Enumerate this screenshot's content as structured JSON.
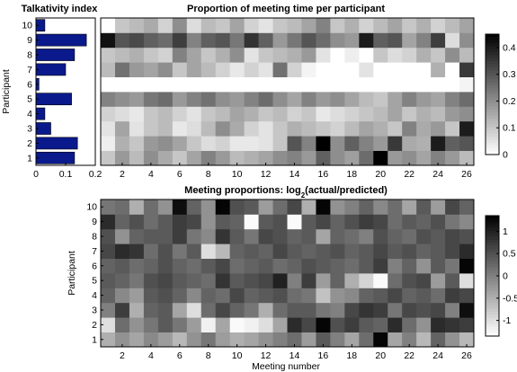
{
  "chart_data": [
    {
      "type": "bar",
      "orientation": "horizontal",
      "title": "Talkativity index",
      "ylabel": "Participant",
      "xlabel": "",
      "categories": [
        "1",
        "2",
        "3",
        "4",
        "5",
        "6",
        "7",
        "8",
        "9",
        "10"
      ],
      "values": [
        0.13,
        0.14,
        0.05,
        0.03,
        0.12,
        0.01,
        0.1,
        0.13,
        0.17,
        0.03
      ],
      "xlim": [
        0,
        0.2
      ],
      "xticks": [
        "0",
        "0.1",
        "0.2"
      ],
      "bar_color": "#0a1a8c"
    },
    {
      "type": "heatmap",
      "title": "Proportion of meeting time per participant",
      "xlabel": "",
      "ylabel": "",
      "x": [
        1,
        2,
        3,
        4,
        5,
        6,
        7,
        8,
        9,
        10,
        11,
        12,
        13,
        14,
        15,
        16,
        17,
        18,
        19,
        20,
        21,
        22,
        23,
        24,
        25,
        26
      ],
      "y": [
        "1",
        "2",
        "3",
        "4",
        "5",
        "6",
        "7",
        "8",
        "9",
        "10"
      ],
      "xticks": [
        "2",
        "4",
        "6",
        "8",
        "10",
        "12",
        "14",
        "16",
        "18",
        "20",
        "22",
        "24",
        "26"
      ],
      "colorbar_ticks": [
        "0",
        "0.1",
        "0.2",
        "0.3",
        "0.4"
      ],
      "clim": [
        0,
        0.45
      ],
      "colormap": "gray-reversed",
      "values": [
        [
          0.1,
          0.18,
          0.12,
          0.2,
          0.15,
          0.1,
          0.16,
          0.22,
          0.18,
          0.12,
          0.14,
          0.16,
          0.2,
          0.22,
          0.18,
          0.28,
          0.2,
          0.17,
          0.26,
          0.45,
          0.18,
          0.2,
          0.16,
          0.22,
          0.18,
          0.12
        ],
        [
          0.03,
          0.14,
          0.1,
          0.18,
          0.2,
          0.16,
          0.1,
          0.06,
          0.08,
          0.04,
          0.04,
          0.05,
          0.1,
          0.3,
          0.22,
          0.45,
          0.2,
          0.28,
          0.22,
          0.18,
          0.35,
          0.15,
          0.14,
          0.4,
          0.28,
          0.3
        ],
        [
          0.05,
          0.16,
          0.05,
          0.1,
          0.12,
          0.04,
          0.06,
          0.12,
          0.2,
          0.15,
          0.08,
          0.05,
          0.1,
          0.14,
          0.12,
          0.1,
          0.08,
          0.12,
          0.16,
          0.14,
          0.1,
          0.22,
          0.15,
          0.18,
          0.1,
          0.4
        ],
        [
          0.08,
          0.06,
          0.04,
          0.1,
          0.12,
          0.08,
          0.05,
          0.1,
          0.12,
          0.16,
          0.14,
          0.1,
          0.12,
          0.08,
          0.1,
          0.04,
          0.06,
          0.08,
          0.1,
          0.12,
          0.16,
          0.1,
          0.14,
          0.12,
          0.18,
          0.2
        ],
        [
          0.22,
          0.2,
          0.18,
          0.24,
          0.26,
          0.18,
          0.22,
          0.25,
          0.2,
          0.18,
          0.22,
          0.26,
          0.2,
          0.16,
          0.22,
          0.18,
          0.2,
          0.16,
          0.12,
          0.1,
          0.16,
          0.22,
          0.18,
          0.16,
          0.22,
          0.26
        ],
        [
          0.0,
          0.0,
          0.0,
          0.0,
          0.0,
          0.0,
          0.0,
          0.0,
          0.0,
          0.0,
          0.0,
          0.0,
          0.0,
          0.0,
          0.0,
          0.0,
          0.0,
          0.0,
          0.0,
          0.0,
          0.0,
          0.0,
          0.0,
          0.0,
          0.0,
          0.02
        ],
        [
          0.12,
          0.25,
          0.18,
          0.16,
          0.2,
          0.1,
          0.16,
          0.12,
          0.08,
          0.04,
          0.08,
          0.05,
          0.25,
          0.08,
          0.02,
          0.0,
          0.0,
          0.0,
          0.05,
          0.0,
          0.0,
          0.0,
          0.0,
          0.14,
          0.0,
          0.35
        ],
        [
          0.1,
          0.12,
          0.14,
          0.1,
          0.08,
          0.22,
          0.16,
          0.1,
          0.14,
          0.2,
          0.05,
          0.1,
          0.12,
          0.14,
          0.18,
          0.05,
          0.0,
          0.03,
          0.0,
          0.1,
          0.06,
          0.08,
          0.14,
          0.1,
          0.2,
          0.12
        ],
        [
          0.42,
          0.3,
          0.32,
          0.28,
          0.26,
          0.34,
          0.22,
          0.28,
          0.3,
          0.24,
          0.36,
          0.28,
          0.18,
          0.24,
          0.3,
          0.26,
          0.2,
          0.18,
          0.4,
          0.28,
          0.3,
          0.16,
          0.22,
          0.34,
          0.06,
          0.2
        ],
        [
          0.0,
          0.1,
          0.12,
          0.15,
          0.08,
          0.2,
          0.06,
          0.12,
          0.1,
          0.16,
          0.08,
          0.05,
          0.1,
          0.12,
          0.16,
          0.22,
          0.1,
          0.14,
          0.08,
          0.12,
          0.16,
          0.1,
          0.14,
          0.08,
          0.12,
          0.16
        ]
      ]
    },
    {
      "type": "heatmap",
      "title": "Meeting proportions: log2(actual/predicted)",
      "title_parts": {
        "prefix": "Meeting proportions: log",
        "subscript": "2",
        "suffix": "(actual/predicted)"
      },
      "xlabel": "Meeting number",
      "ylabel": "Participant",
      "x": [
        1,
        2,
        3,
        4,
        5,
        6,
        7,
        8,
        9,
        10,
        11,
        12,
        13,
        14,
        15,
        16,
        17,
        18,
        19,
        20,
        21,
        22,
        23,
        24,
        25,
        26
      ],
      "y": [
        "1",
        "2",
        "3",
        "4",
        "5",
        "6",
        "7",
        "8",
        "9",
        "10"
      ],
      "xticks": [
        "2",
        "4",
        "6",
        "8",
        "10",
        "12",
        "14",
        "16",
        "18",
        "20",
        "22",
        "24",
        "26"
      ],
      "colorbar_ticks": [
        "1",
        "0.5",
        "0",
        "-0.5",
        "-1"
      ],
      "clim": [
        -1.35,
        1.35
      ],
      "colormap": "gray-reversed",
      "values": [
        [
          -0.5,
          -0.2,
          -0.4,
          -0.1,
          -0.3,
          -0.6,
          -0.2,
          0.1,
          -0.3,
          -0.5,
          -0.4,
          -0.2,
          0.0,
          0.2,
          -0.3,
          0.4,
          0.0,
          -0.4,
          0.2,
          1.3,
          -0.4,
          0.0,
          -0.6,
          0.3,
          -0.2,
          -0.6
        ],
        [
          -1.0,
          0.2,
          -0.2,
          0.1,
          0.4,
          0.1,
          -0.3,
          -1.2,
          -0.4,
          -1.3,
          -1.2,
          -1.0,
          -0.4,
          0.9,
          0.6,
          1.3,
          0.5,
          0.7,
          0.4,
          0.3,
          0.9,
          0.2,
          -0.2,
          0.9,
          0.8,
          0.7
        ],
        [
          0.0,
          0.7,
          -0.5,
          0.3,
          0.4,
          -0.4,
          -1.0,
          0.2,
          0.6,
          0.3,
          0.1,
          -0.5,
          0.2,
          0.4,
          0.4,
          0.1,
          0.0,
          0.6,
          0.8,
          0.7,
          0.1,
          0.6,
          0.5,
          0.6,
          0.0,
          1.2
        ],
        [
          0.3,
          -0.1,
          -0.3,
          0.4,
          0.5,
          0.3,
          -0.1,
          0.3,
          0.2,
          0.6,
          0.3,
          0.4,
          0.5,
          0.2,
          0.1,
          -0.7,
          -0.2,
          -0.1,
          0.3,
          0.4,
          0.6,
          0.3,
          0.4,
          0.2,
          0.7,
          0.6
        ],
        [
          0.4,
          0.3,
          0.1,
          0.5,
          0.6,
          0.4,
          0.3,
          0.2,
          0.8,
          0.4,
          0.5,
          0.6,
          1.0,
          0.0,
          0.7,
          -0.3,
          0.3,
          -0.5,
          -0.9,
          -1.3,
          0.2,
          0.5,
          0.6,
          -0.3,
          0.4,
          -1.0
        ],
        [
          0.3,
          0.4,
          0.2,
          0.3,
          0.5,
          0.3,
          0.2,
          0.4,
          0.6,
          0.2,
          0.3,
          0.4,
          0.2,
          0.3,
          0.5,
          0.4,
          0.3,
          0.2,
          0.4,
          0.7,
          0.0,
          0.3,
          -0.2,
          0.4,
          0.1,
          1.3
        ],
        [
          0.6,
          0.9,
          0.8,
          0.2,
          0.5,
          0.1,
          0.4,
          -1.0,
          -0.6,
          0.3,
          0.4,
          0.3,
          0.6,
          0.4,
          0.3,
          0.4,
          0.5,
          0.3,
          0.4,
          0.6,
          0.4,
          0.5,
          0.3,
          0.4,
          0.6,
          0.9
        ],
        [
          0.5,
          -0.2,
          0.3,
          0.4,
          0.4,
          0.7,
          0.1,
          -0.1,
          0.8,
          0.4,
          0.1,
          0.6,
          0.5,
          0.3,
          0.4,
          -0.4,
          0.3,
          0.2,
          0.0,
          0.5,
          0.3,
          0.2,
          0.5,
          0.4,
          0.6,
          0.5
        ],
        [
          0.9,
          0.3,
          0.5,
          0.2,
          0.4,
          0.7,
          0.6,
          -0.2,
          0.4,
          0.3,
          -1.3,
          0.4,
          0.5,
          -1.3,
          0.4,
          0.6,
          0.3,
          0.5,
          0.7,
          0.6,
          0.2,
          0.4,
          0.3,
          0.5,
          0.1,
          -0.1
        ],
        [
          0.1,
          0.2,
          -0.5,
          0.2,
          -0.2,
          1.2,
          0.3,
          -0.2,
          1.3,
          0.5,
          0.4,
          -0.3,
          0.2,
          0.6,
          -0.5,
          1.3,
          -0.2,
          0.0,
          0.3,
          -0.1,
          0.2,
          -0.4,
          0.4,
          -0.3,
          0.6,
          0.3
        ]
      ]
    }
  ]
}
